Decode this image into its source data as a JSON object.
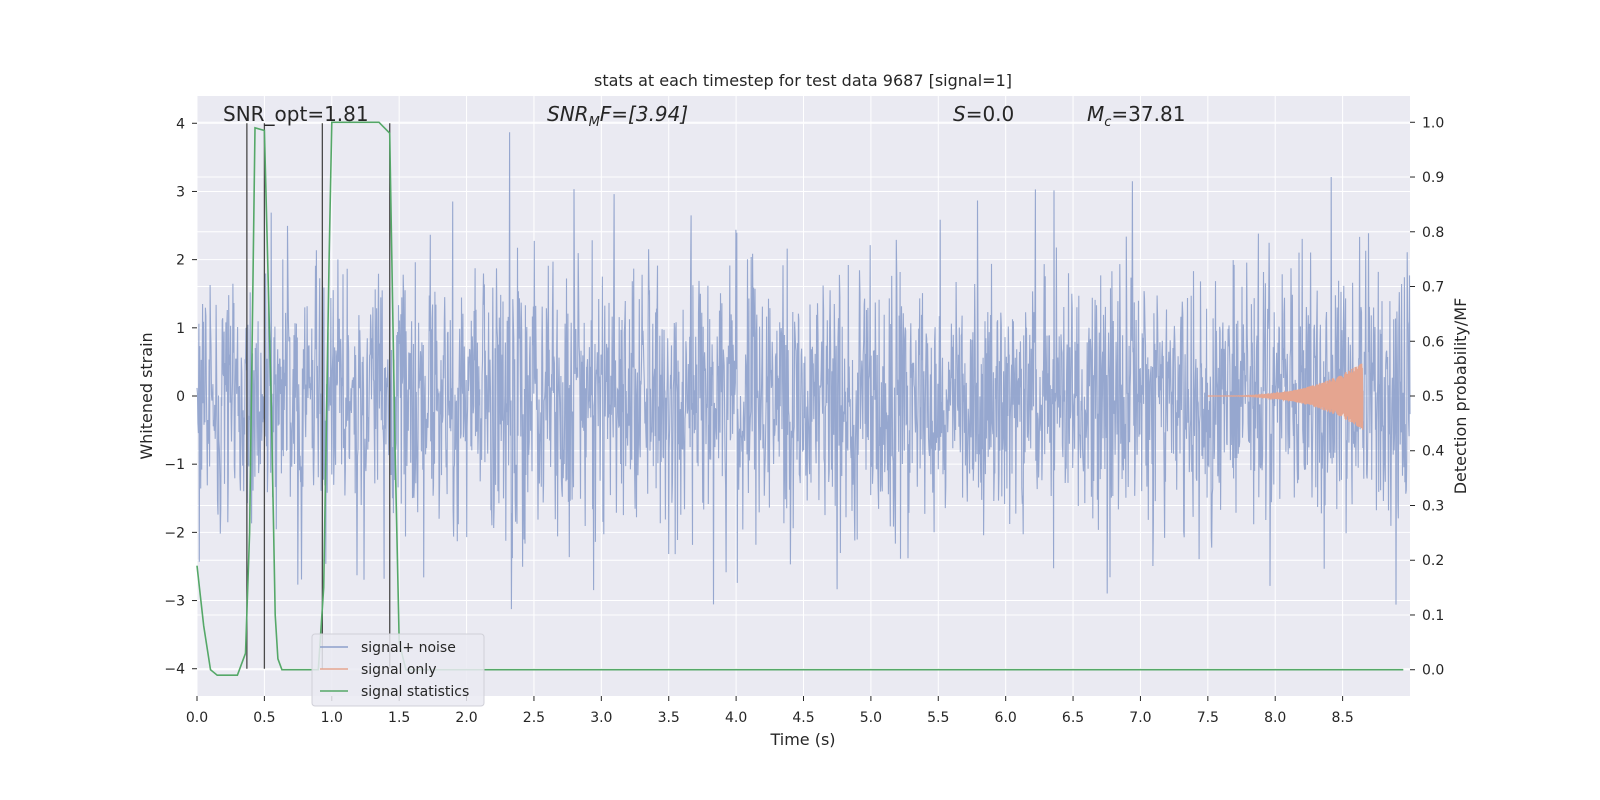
{
  "chart_data": {
    "type": "line",
    "title": "stats at each timestep for test data 9687 [signal=1]",
    "xlabel": "Time (s)",
    "ylabel": "Whitened strain",
    "y2label": "Detection probability/MF",
    "xlim": [
      0.0,
      9.0
    ],
    "ylim": [
      -4.4,
      4.4
    ],
    "y2lim": [
      -0.048,
      1.048
    ],
    "xticks": [
      "0.0",
      "0.5",
      "1.0",
      "1.5",
      "2.0",
      "2.5",
      "3.0",
      "3.5",
      "4.0",
      "4.5",
      "5.0",
      "5.5",
      "6.0",
      "6.5",
      "7.0",
      "7.5",
      "8.0",
      "8.5"
    ],
    "xtick_values": [
      0.0,
      0.5,
      1.0,
      1.5,
      2.0,
      2.5,
      3.0,
      3.5,
      4.0,
      4.5,
      5.0,
      5.5,
      6.0,
      6.5,
      7.0,
      7.5,
      8.0,
      8.5
    ],
    "yticks": [
      "4",
      "3",
      "2",
      "1",
      "0",
      "−1",
      "−2",
      "−3",
      "−4"
    ],
    "ytick_values": [
      4,
      3,
      2,
      1,
      0,
      -1,
      -2,
      -3,
      -4
    ],
    "y2ticks": [
      "1.0",
      "0.9",
      "0.8",
      "0.7",
      "0.6",
      "0.5",
      "0.4",
      "0.3",
      "0.2",
      "0.1",
      "0.0"
    ],
    "y2tick_values": [
      1.0,
      0.9,
      0.8,
      0.7,
      0.6,
      0.5,
      0.4,
      0.3,
      0.2,
      0.1,
      0.0
    ],
    "grid": true,
    "legend_position": "lower-left",
    "annotations": {
      "snr_opt": "SNR_opt=1.81",
      "snr_mf_label": "SNR",
      "snr_mf_sub": "M",
      "snr_mf_suffix": "F=[3.94]",
      "s_label": "S",
      "s_value": "=0.0",
      "mc_label": "M",
      "mc_sub": "c",
      "mc_value": "=37.81"
    },
    "series": [
      {
        "name": "signal+ noise",
        "color": "#8da0cb",
        "description": "whitened noise + signal, approx. gaussian with peaks ~±3.5",
        "envelope_typical": 1.6,
        "envelope_peak": 4.0,
        "t_range": [
          0.0,
          9.0
        ]
      },
      {
        "name": "signal only",
        "color": "#e5a590",
        "description": "chirp signal growing toward merger",
        "t_start": 7.5,
        "t_merger": 8.65,
        "peak_amplitude": 0.5
      },
      {
        "name": "signal statistics",
        "color": "#55a868",
        "axis": "right",
        "points": [
          [
            0.0,
            0.19
          ],
          [
            0.05,
            0.08
          ],
          [
            0.1,
            0.0
          ],
          [
            0.15,
            -0.01
          ],
          [
            0.2,
            -0.01
          ],
          [
            0.3,
            -0.01
          ],
          [
            0.36,
            0.03
          ],
          [
            0.39,
            0.25
          ],
          [
            0.43,
            0.99
          ],
          [
            0.5,
            0.985
          ],
          [
            0.55,
            0.5
          ],
          [
            0.58,
            0.1
          ],
          [
            0.6,
            0.02
          ],
          [
            0.63,
            0.0
          ],
          [
            0.9,
            0.0
          ],
          [
            0.94,
            0.15
          ],
          [
            0.98,
            0.75
          ],
          [
            1.0,
            1.0
          ],
          [
            1.15,
            1.0
          ],
          [
            1.35,
            1.0
          ],
          [
            1.43,
            0.98
          ],
          [
            1.47,
            0.4
          ],
          [
            1.5,
            0.05
          ],
          [
            1.55,
            0.0
          ],
          [
            2.5,
            0.0
          ],
          [
            5.0,
            0.0
          ],
          [
            7.5,
            0.0
          ],
          [
            8.95,
            0.0
          ]
        ]
      }
    ],
    "vertical_markers": [
      0.37,
      0.5,
      0.93,
      1.43
    ]
  }
}
